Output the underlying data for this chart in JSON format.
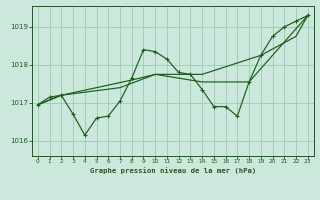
{
  "title": "Graphe pression niveau de la mer (hPa)",
  "bg_color": "#cce8dc",
  "grid_color": "#99ccb3",
  "line_color": "#1a5c1a",
  "xlim": [
    -0.5,
    23.5
  ],
  "ylim": [
    1015.6,
    1019.55
  ],
  "yticks": [
    1016,
    1017,
    1018,
    1019
  ],
  "xticks": [
    0,
    1,
    2,
    3,
    4,
    5,
    6,
    7,
    8,
    9,
    10,
    11,
    12,
    13,
    14,
    15,
    16,
    17,
    18,
    19,
    20,
    21,
    22,
    23
  ],
  "series_detail": {
    "x": [
      0,
      1,
      2,
      3,
      4,
      5,
      6,
      7,
      8,
      9,
      10,
      11,
      12,
      13,
      14,
      15,
      16,
      17,
      18,
      19,
      20,
      21,
      22,
      23
    ],
    "y": [
      1016.95,
      1017.15,
      1017.2,
      1016.7,
      1016.15,
      1016.6,
      1016.65,
      1017.05,
      1017.65,
      1018.4,
      1018.35,
      1018.15,
      1017.8,
      1017.75,
      1017.35,
      1016.9,
      1016.9,
      1016.65,
      1017.55,
      1018.25,
      1018.75,
      1019.0,
      1019.15,
      1019.3
    ]
  },
  "series_trend1": {
    "x": [
      0,
      2,
      7,
      10,
      14,
      19,
      22,
      23
    ],
    "y": [
      1016.95,
      1017.2,
      1017.4,
      1017.75,
      1017.75,
      1018.25,
      1018.75,
      1019.3
    ]
  },
  "series_trend2": {
    "x": [
      0,
      2,
      8,
      10,
      14,
      18,
      23
    ],
    "y": [
      1016.95,
      1017.2,
      1017.6,
      1017.75,
      1017.55,
      1017.55,
      1019.3
    ]
  }
}
